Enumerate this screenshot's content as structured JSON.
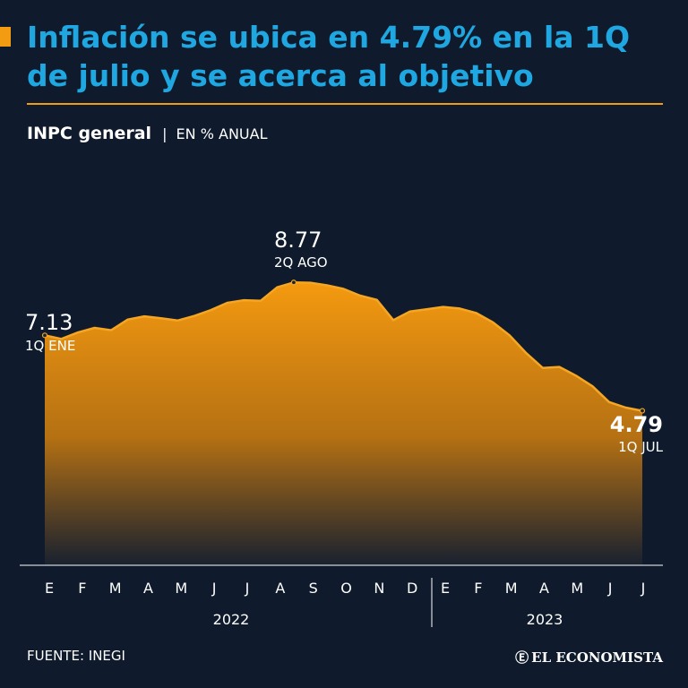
{
  "header": {
    "title": "Inflación se ubica en 4.79% en la 1Q de julio y se acerca al objetivo",
    "subtitle_main": "INPC general",
    "subtitle_sep": "|",
    "subtitle_unit": "EN % ANUAL"
  },
  "footer": {
    "source": "FUENTE: INEGI",
    "brand_icon": "logo-e-icon",
    "brand_mark": "Ⓔ",
    "brand": "EL ECONOMISTA"
  },
  "colors": {
    "background": "#0f1b2c",
    "title": "#1fa7e2",
    "accent": "#f39c12",
    "line": "#f5a623",
    "text": "#ffffff"
  },
  "chart_data": {
    "type": "area",
    "ylim": [
      0,
      9.5
    ],
    "grid": false,
    "x": [
      "E",
      "E",
      "F",
      "F",
      "M",
      "M",
      "A",
      "A",
      "M",
      "M",
      "J",
      "J",
      "J",
      "J",
      "A",
      "A",
      "S",
      "S",
      "O",
      "O",
      "N",
      "N",
      "D",
      "D",
      "E",
      "E",
      "F",
      "F",
      "M",
      "M",
      "A",
      "A",
      "M",
      "M",
      "J",
      "J",
      "J"
    ],
    "values": [
      7.13,
      7.02,
      7.22,
      7.36,
      7.29,
      7.62,
      7.72,
      7.66,
      7.59,
      7.73,
      7.91,
      8.14,
      8.22,
      8.2,
      8.62,
      8.77,
      8.76,
      8.68,
      8.57,
      8.36,
      8.23,
      7.6,
      7.87,
      7.94,
      8.01,
      7.96,
      7.82,
      7.53,
      7.13,
      6.58,
      6.12,
      6.15,
      5.88,
      5.55,
      5.06,
      4.89,
      4.79
    ],
    "month_labels": [
      "E",
      "F",
      "M",
      "A",
      "M",
      "J",
      "J",
      "A",
      "S",
      "O",
      "N",
      "D",
      "E",
      "F",
      "M",
      "A",
      "M",
      "J",
      "J"
    ],
    "years": [
      "2022",
      "2023"
    ],
    "annotations": [
      {
        "value": "7.13",
        "label": "1Q ENE",
        "index": 0
      },
      {
        "value": "8.77",
        "label": "2Q AGO",
        "index": 15
      },
      {
        "value": "4.79",
        "label": "1Q JUL",
        "index": 36
      }
    ]
  }
}
